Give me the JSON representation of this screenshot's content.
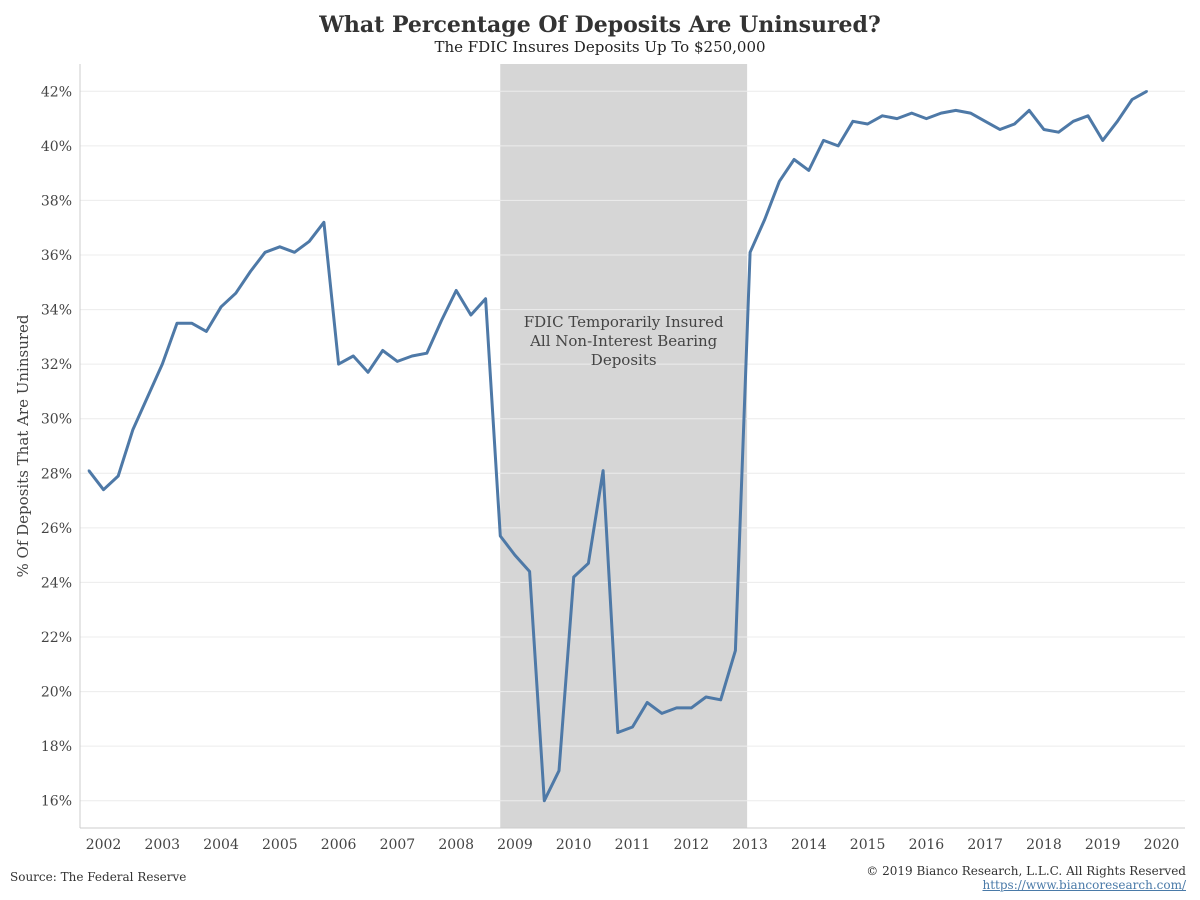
{
  "chart_data": {
    "type": "line",
    "title": "What Percentage Of Deposits Are Uninsured?",
    "subtitle": "The FDIC Insures Deposits Up To $250,000",
    "ylabel": "% Of Deposits That Are Uninsured",
    "xlabel": "",
    "ylim": [
      15,
      43
    ],
    "xlim": [
      2001.6,
      2020.4
    ],
    "y_ticks": [
      16,
      18,
      20,
      22,
      24,
      26,
      28,
      30,
      32,
      34,
      36,
      38,
      40,
      42
    ],
    "y_tick_suffix": "%",
    "x_ticks": [
      2002,
      2003,
      2004,
      2005,
      2006,
      2007,
      2008,
      2009,
      2010,
      2011,
      2012,
      2013,
      2014,
      2015,
      2016,
      2017,
      2018,
      2019,
      2020
    ],
    "grid": true,
    "line_color": "#4e79a7",
    "shaded_region": {
      "x_start": 2008.75,
      "x_end": 2012.95,
      "color": "#d6d6d6",
      "label_lines": [
        "FDIC Temporarily Insured",
        "All Non-Interest Bearing",
        "Deposits"
      ]
    },
    "series": [
      {
        "x": [
          2001.75,
          2002.0,
          2002.25,
          2002.5,
          2002.75,
          2003.0,
          2003.25,
          2003.5,
          2003.75,
          2004.0,
          2004.25,
          2004.5,
          2004.75,
          2005.0,
          2005.25,
          2005.5,
          2005.75,
          2006.0,
          2006.25,
          2006.5,
          2006.75,
          2007.0,
          2007.25,
          2007.5,
          2007.75,
          2008.0,
          2008.25,
          2008.5,
          2008.75,
          2009.0,
          2009.25,
          2009.5,
          2009.75,
          2010.0,
          2010.25,
          2010.5,
          2010.75,
          2011.0,
          2011.25,
          2011.5,
          2011.75,
          2012.0,
          2012.25,
          2012.5,
          2012.75,
          2013.0,
          2013.25,
          2013.5,
          2013.75,
          2014.0,
          2014.25,
          2014.5,
          2014.75,
          2015.0,
          2015.25,
          2015.5,
          2015.75,
          2016.0,
          2016.25,
          2016.5,
          2016.75,
          2017.0,
          2017.25,
          2017.5,
          2017.75,
          2018.0,
          2018.25,
          2018.5,
          2018.75,
          2019.0,
          2019.25,
          2019.5,
          2019.75
        ],
        "values": [
          28.1,
          27.4,
          27.9,
          29.6,
          30.8,
          32.0,
          33.5,
          33.5,
          33.2,
          34.1,
          34.6,
          35.4,
          36.1,
          36.3,
          36.1,
          36.5,
          37.2,
          32.0,
          32.3,
          31.7,
          32.5,
          32.1,
          32.3,
          32.4,
          33.6,
          34.7,
          33.8,
          34.4,
          25.7,
          25.0,
          24.4,
          16.0,
          17.1,
          24.2,
          24.7,
          28.1,
          18.5,
          18.7,
          19.6,
          19.2,
          19.4,
          19.4,
          19.8,
          19.7,
          21.5,
          36.1,
          37.3,
          38.7,
          39.5,
          39.1,
          40.2,
          40.0,
          40.9,
          40.8,
          41.1,
          41.0,
          41.2,
          41.0,
          41.2,
          41.3,
          41.2,
          40.9,
          40.6,
          40.8,
          41.3,
          40.6,
          40.5,
          40.9,
          41.1,
          40.2,
          40.9,
          41.7,
          42.0
        ]
      }
    ]
  },
  "footer": {
    "source": "Source: The Federal Reserve",
    "copyright": "© 2019 Bianco Research, L.L.C. All Rights Reserved",
    "url": "https://www.biancoresearch.com/"
  }
}
